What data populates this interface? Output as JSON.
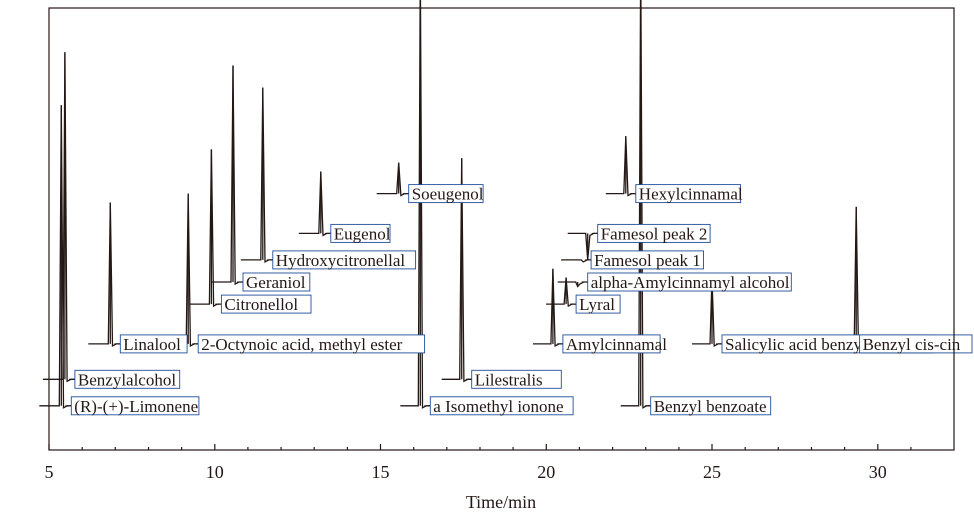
{
  "chart_data": {
    "type": "line",
    "title": "",
    "xlabel": "Time/min",
    "ylabel": "",
    "xlim": [
      5,
      32.3
    ],
    "x_ticks": [
      "5",
      "10",
      "15",
      "20",
      "25",
      "30"
    ],
    "grid": false,
    "series": [
      {
        "traces": [
          {
            "baseline": 0.1,
            "peaks": [
              {
                "rt": 5.37,
                "height": 0.78,
                "label": "(R)-(+)-Limonene"
              },
              {
                "rt": 16.2,
                "height": 1.1,
                "label": "a Isomethyl ionone"
              },
              {
                "rt": 22.85,
                "height": 1.12,
                "label": "Benzyl benzoate"
              }
            ]
          },
          {
            "baseline": 0.16,
            "peaks": [
              {
                "rt": 5.48,
                "height": 0.9,
                "label": "Benzylalcohol"
              },
              {
                "rt": 17.45,
                "height": 0.66,
                "label": "Lilestralis"
              }
            ]
          },
          {
            "baseline": 0.24,
            "peaks": [
              {
                "rt": 6.85,
                "height": 0.56,
                "label": "Linalool"
              },
              {
                "rt": 9.2,
                "height": 0.58,
                "label": "2-Octynoic acid, methyl ester"
              },
              {
                "rt": 20.2,
                "height": 0.41,
                "label": "Amylcinnamal"
              },
              {
                "rt": 25.0,
                "height": 0.39,
                "label": "Salicylic acid benzyl ester"
              },
              {
                "rt": 29.35,
                "height": 0.55,
                "label": "Benzyl cis-cin"
              }
            ]
          },
          {
            "baseline": 0.33,
            "peaks": [
              {
                "rt": 9.9,
                "height": 0.68,
                "label": "Citronellol"
              },
              {
                "rt": 20.6,
                "height": 0.39,
                "label": "Lyral"
              }
            ]
          },
          {
            "baseline": 0.38,
            "peaks": [
              {
                "rt": 10.55,
                "height": 0.87,
                "label": "Geraniol"
              },
              {
                "rt": 20.95,
                "height": 0.37,
                "label": "alpha-Amylcinnamyl alcohol"
              }
            ]
          },
          {
            "baseline": 0.43,
            "peaks": [
              {
                "rt": 11.45,
                "height": 0.82,
                "label": "Hydroxycitronellal"
              },
              {
                "rt": 21.05,
                "height": 0.43,
                "label": "Famesol peak 1"
              }
            ]
          },
          {
            "baseline": 0.49,
            "peaks": [
              {
                "rt": 13.2,
                "height": 0.63,
                "label": "Eugenol"
              },
              {
                "rt": 21.25,
                "height": 0.43,
                "label": "Famesol peak 2"
              }
            ]
          },
          {
            "baseline": 0.58,
            "peaks": [
              {
                "rt": 15.55,
                "height": 0.65,
                "label": "Soeugenol"
              },
              {
                "rt": 22.4,
                "height": 0.71,
                "label": "Hexylcinnamal"
              }
            ]
          }
        ]
      }
    ]
  }
}
